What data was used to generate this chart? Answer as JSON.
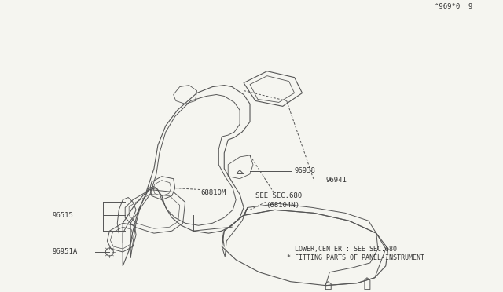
{
  "background_color": "#f5f5f0",
  "line_color": "#555555",
  "text_color": "#333333",
  "fig_width": 6.4,
  "fig_height": 3.72,
  "dpi": 100,
  "note_line1": "* FITTING PARTS OF PANEL-INSTRUMENT",
  "note_line2": "  LOWER,CENTER : SEE SEC.680",
  "footnote": "^969*0  9",
  "label_96941": "96941",
  "label_96938": "96938",
  "label_68104N": "(68104N)",
  "label_sec680": "SEE SEC.680",
  "label_68810M": "68810M",
  "label_96515": "96515",
  "label_96951A": "96951A"
}
